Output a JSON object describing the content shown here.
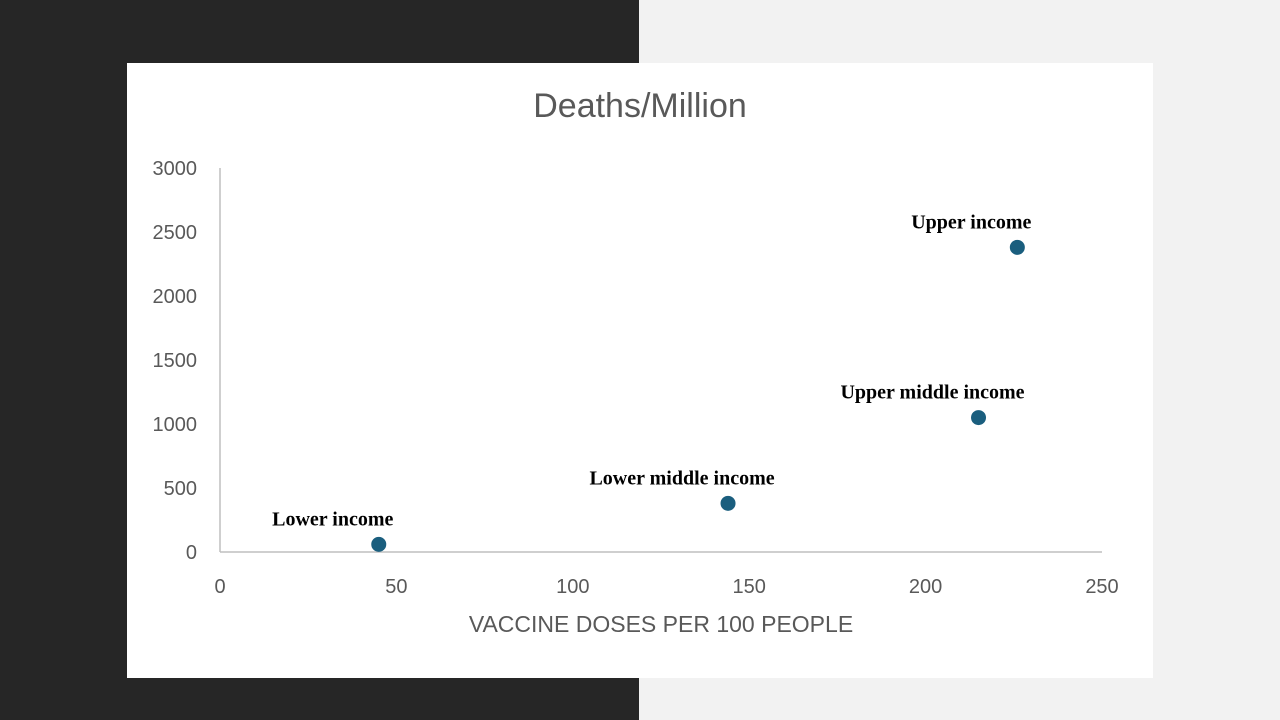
{
  "colors": {
    "marker": "#1a5e7e",
    "axis": "#bfbfbf",
    "text": "#595959"
  },
  "chart_data": {
    "type": "scatter",
    "title": "Deaths/Million",
    "xlabel": "VACCINE DOSES PER 100 PEOPLE",
    "ylabel": "",
    "xlim": [
      0,
      250
    ],
    "ylim": [
      0,
      3000
    ],
    "xticks": [
      0,
      50,
      100,
      150,
      200,
      250
    ],
    "yticks": [
      0,
      500,
      1000,
      1500,
      2000,
      2500,
      3000
    ],
    "grid": false,
    "legend": "none",
    "points": [
      {
        "label": "Lower income",
        "x": 45,
        "y": 60
      },
      {
        "label": "Lower middle income",
        "x": 144,
        "y": 380
      },
      {
        "label": "Upper middle income",
        "x": 215,
        "y": 1050
      },
      {
        "label": "Upper income",
        "x": 226,
        "y": 2380
      }
    ]
  }
}
